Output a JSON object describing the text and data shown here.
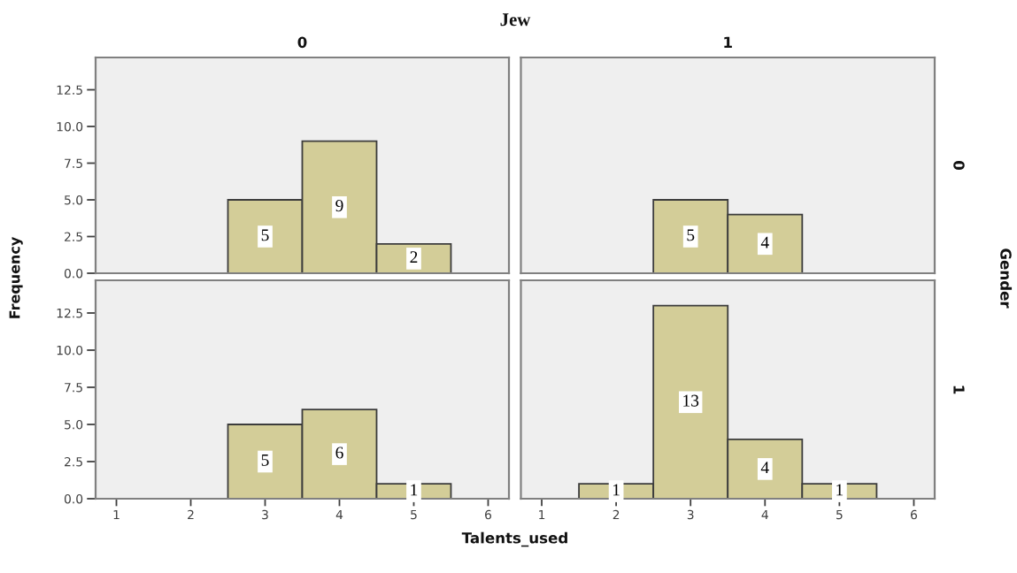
{
  "chart_data": [
    {
      "type": "histogram",
      "title": "0",
      "ylabel": "Frequency",
      "annotations": [
        "Jew"
      ],
      "bins": [
        2.5,
        3.5,
        4.5,
        5.5
      ],
      "values": [
        5,
        9,
        2
      ],
      "color": "#d3cd98",
      "xlim": [
        0.72,
        6.28
      ],
      "ylim": [
        0,
        14.7
      ],
      "yticks": [
        {
          "value": 0,
          "label": "0.0"
        },
        2.5,
        {
          "value": 5,
          "label": "5.0"
        },
        7.5,
        {
          "value": 10,
          "label": "10.0"
        },
        12.5
      ],
      "tick_labels": "y",
      "data_labels": true
    },
    {
      "type": "histogram",
      "title": "1",
      "y2label": "0",
      "annotations": [
        "Gender"
      ],
      "bins": [
        2.5,
        3.5,
        4.5
      ],
      "values": [
        5,
        4
      ],
      "color": "#d3cd98",
      "xlim": [
        0.72,
        6.28
      ],
      "ylim": [
        0,
        14.7
      ],
      "tick_labels": false,
      "data_labels": true
    },
    {
      "type": "histogram",
      "xlabel": "Talents_used",
      "bins": [
        2.5,
        3.5,
        4.5,
        5.5
      ],
      "values": [
        5,
        6,
        1
      ],
      "color": "#d3cd98",
      "xlim": [
        0.72,
        6.28
      ],
      "ylim": [
        0,
        14.7
      ],
      "xticks": [
        1,
        2,
        3,
        4,
        5,
        6
      ],
      "yticks": [
        {
          "value": 0,
          "label": "0.0"
        },
        2.5,
        {
          "value": 5,
          "label": "5.0"
        },
        7.5,
        {
          "value": 10,
          "label": "10.0"
        },
        12.5
      ],
      "data_labels": true
    },
    {
      "type": "histogram",
      "y2label": "1",
      "bins": [
        1.5,
        2.5,
        3.5,
        4.5,
        5.5
      ],
      "values": [
        1,
        13,
        4,
        1
      ],
      "color": "#d3cd98",
      "xlim": [
        0.72,
        6.28
      ],
      "ylim": [
        0,
        14.7
      ],
      "xticks": [
        1,
        2,
        3,
        4,
        5,
        6
      ],
      "tick_labels": "x",
      "data_labels": true
    }
  ]
}
